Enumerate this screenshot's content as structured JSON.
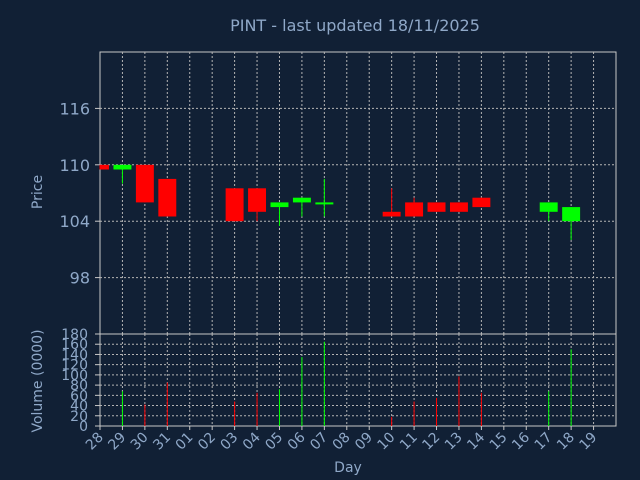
{
  "chart_data": {
    "type": "candlestick",
    "title": "PINT - last updated 18/11/2025",
    "xlabel": "Day",
    "price_panel": {
      "ylabel": "Price",
      "ylim": [
        92,
        122
      ],
      "yticks": [
        98,
        104,
        110,
        116
      ],
      "grid": true
    },
    "volume_panel": {
      "ylabel": "Volume (0000)",
      "ylim": [
        0,
        180
      ],
      "yticks": [
        0,
        20,
        40,
        60,
        80,
        100,
        120,
        140,
        160,
        180
      ],
      "grid": true
    },
    "x_ticks": [
      "28",
      "29",
      "30",
      "31",
      "01",
      "02",
      "03",
      "04",
      "05",
      "06",
      "07",
      "08",
      "09",
      "10",
      "11",
      "12",
      "13",
      "14",
      "15",
      "16",
      "17",
      "18",
      "19"
    ],
    "candles": [
      {
        "day": "28",
        "open": 110.0,
        "high": 110.0,
        "low": 109.5,
        "close": 109.5,
        "volume": 0
      },
      {
        "day": "29",
        "open": 109.5,
        "high": 110.0,
        "low": 108.0,
        "close": 110.0,
        "volume": 68
      },
      {
        "day": "30",
        "open": 110.0,
        "high": 110.0,
        "low": 106.0,
        "close": 106.0,
        "volume": 42
      },
      {
        "day": "31",
        "open": 108.5,
        "high": 108.5,
        "low": 104.5,
        "close": 104.5,
        "volume": 85
      },
      {
        "day": "03",
        "open": 107.5,
        "high": 107.5,
        "low": 104.0,
        "close": 104.0,
        "volume": 48
      },
      {
        "day": "04",
        "open": 107.5,
        "high": 107.5,
        "low": 104.0,
        "close": 105.0,
        "volume": 65
      },
      {
        "day": "05",
        "open": 105.5,
        "high": 106.0,
        "low": 103.5,
        "close": 106.0,
        "volume": 72
      },
      {
        "day": "06",
        "open": 106.0,
        "high": 106.5,
        "low": 104.5,
        "close": 106.5,
        "volume": 135
      },
      {
        "day": "07",
        "open": 106.0,
        "high": 108.5,
        "low": 104.5,
        "close": 106.0,
        "volume": 165
      },
      {
        "day": "10",
        "open": 105.0,
        "high": 107.5,
        "low": 104.5,
        "close": 104.5,
        "volume": 18
      },
      {
        "day": "11",
        "open": 106.0,
        "high": 106.5,
        "low": 104.5,
        "close": 104.5,
        "volume": 48
      },
      {
        "day": "12",
        "open": 106.0,
        "high": 106.0,
        "low": 105.0,
        "close": 105.0,
        "volume": 55
      },
      {
        "day": "13",
        "open": 106.0,
        "high": 106.0,
        "low": 105.0,
        "close": 105.0,
        "volume": 97
      },
      {
        "day": "14",
        "open": 106.5,
        "high": 106.5,
        "low": 105.5,
        "close": 105.5,
        "volume": 65
      },
      {
        "day": "17",
        "open": 105.0,
        "high": 106.0,
        "low": 104.0,
        "close": 106.0,
        "volume": 68
      },
      {
        "day": "18",
        "open": 104.0,
        "high": 105.5,
        "low": 102.0,
        "close": 105.5,
        "volume": 150
      }
    ],
    "colors": {
      "background": "#112035",
      "title": "#ffff00",
      "text": "#8fa8c8",
      "axis": "#c8c8c8",
      "grid": "#b4b4b4",
      "up": "#00ff00",
      "down": "#ff0000"
    }
  }
}
